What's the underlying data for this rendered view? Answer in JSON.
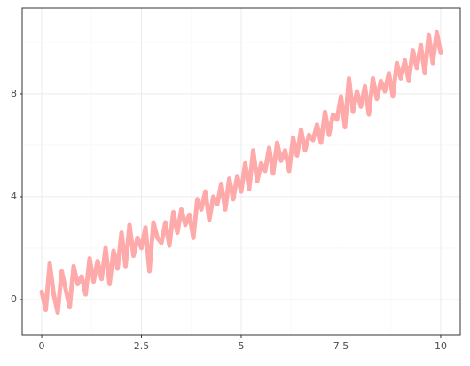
{
  "chart_data": {
    "type": "line",
    "x": [
      0,
      0.1,
      0.2,
      0.3,
      0.4,
      0.5,
      0.6,
      0.7,
      0.8,
      0.9,
      1,
      1.1,
      1.2,
      1.3,
      1.4,
      1.5,
      1.6,
      1.7,
      1.8,
      1.9,
      2,
      2.1,
      2.2,
      2.3,
      2.4,
      2.5,
      2.6,
      2.7,
      2.8,
      2.9,
      3,
      3.1,
      3.2,
      3.3,
      3.4,
      3.5,
      3.6,
      3.7,
      3.8,
      3.9,
      4,
      4.1,
      4.2,
      4.3,
      4.4,
      4.5,
      4.6,
      4.7,
      4.8,
      4.9,
      5,
      5.1,
      5.2,
      5.3,
      5.4,
      5.5,
      5.6,
      5.7,
      5.8,
      5.9,
      6,
      6.1,
      6.2,
      6.3,
      6.4,
      6.5,
      6.6,
      6.7,
      6.8,
      6.9,
      7,
      7.1,
      7.2,
      7.3,
      7.4,
      7.5,
      7.6,
      7.7,
      7.8,
      7.9,
      8,
      8.1,
      8.2,
      8.3,
      8.4,
      8.5,
      8.6,
      8.7,
      8.8,
      8.9,
      9,
      9.1,
      9.2,
      9.3,
      9.4,
      9.5,
      9.6,
      9.7,
      9.8,
      9.9,
      10
    ],
    "values": [
      0.3,
      -0.4,
      1.4,
      0.2,
      -0.5,
      1.1,
      0.4,
      -0.3,
      1.3,
      0.6,
      0.9,
      0.2,
      1.6,
      0.7,
      1.5,
      0.8,
      2.0,
      0.6,
      1.9,
      1.2,
      2.6,
      1.3,
      2.9,
      1.7,
      2.4,
      2.0,
      2.8,
      1.1,
      3.0,
      2.4,
      2.2,
      3.0,
      2.1,
      3.4,
      2.6,
      3.5,
      2.9,
      3.3,
      2.4,
      3.9,
      3.5,
      4.2,
      3.1,
      4.0,
      3.7,
      4.5,
      3.5,
      4.7,
      3.9,
      4.8,
      4.2,
      5.3,
      4.3,
      5.8,
      4.6,
      5.3,
      5.0,
      5.9,
      4.9,
      6.1,
      5.4,
      5.8,
      5.0,
      6.3,
      5.6,
      6.6,
      5.8,
      6.4,
      6.2,
      6.8,
      6.1,
      7.3,
      6.4,
      7.2,
      7.0,
      7.9,
      6.7,
      8.6,
      7.3,
      8.1,
      7.5,
      8.3,
      7.2,
      8.6,
      7.8,
      8.5,
      8.1,
      8.8,
      7.9,
      9.2,
      8.6,
      9.3,
      8.5,
      9.7,
      9.0,
      9.9,
      8.8,
      10.3,
      9.2,
      10.4,
      9.6
    ],
    "color": "#ffaaaa",
    "xlim": [
      -0.49,
      10.49
    ],
    "ylim": [
      -1.38,
      11.34
    ],
    "xticks": [
      0,
      2.5,
      5,
      7.5,
      10
    ],
    "yticks": [
      0,
      4,
      8
    ],
    "grid": true
  }
}
